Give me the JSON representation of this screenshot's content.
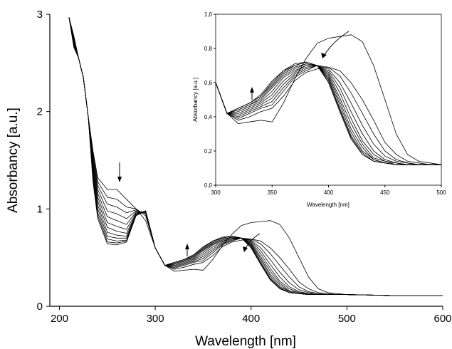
{
  "chart_data": [
    {
      "type": "line",
      "xlabel": "Wavelength [nm]",
      "ylabel": "Absorbancy [a.u.]",
      "xlim": [
        190,
        600
      ],
      "ylim": [
        0,
        3
      ],
      "xticks": [
        "200",
        "300",
        "400",
        "500",
        "600"
      ],
      "yticks": [
        "0",
        "1",
        "2",
        "3"
      ],
      "xtick_values": [
        200,
        300,
        400,
        500,
        600
      ],
      "ytick_values": [
        0,
        1,
        2,
        3
      ],
      "grid": false,
      "series_count": 12,
      "description_of_series": "UV-Vis spectra recorded over time; band near 260 nm decreases, band near 330 nm increases, band near 425 nm shifts to ~385 nm",
      "series": [
        {
          "x": [
            210,
            215,
            220,
            225,
            230,
            235,
            240,
            250,
            260,
            270,
            280,
            290,
            300,
            310,
            320,
            330,
            340,
            350,
            360,
            370,
            380,
            390,
            400,
            410,
            420,
            430,
            440,
            450,
            460,
            470,
            480,
            490,
            500,
            550,
            600
          ],
          "y": [
            2.97,
            2.78,
            2.55,
            2.35,
            1.95,
            1.6,
            1.32,
            1.2,
            1.2,
            1.1,
            1.0,
            0.88,
            0.6,
            0.42,
            0.36,
            0.37,
            0.38,
            0.37,
            0.48,
            0.62,
            0.74,
            0.83,
            0.86,
            0.87,
            0.88,
            0.84,
            0.7,
            0.5,
            0.3,
            0.18,
            0.14,
            0.13,
            0.12,
            0.11,
            0.11
          ]
        },
        {
          "x": [
            210,
            215,
            220,
            225,
            230,
            235,
            240,
            250,
            260,
            270,
            280,
            290,
            300,
            310,
            320,
            330,
            340,
            350,
            360,
            370,
            380,
            390,
            400,
            410,
            420,
            430,
            440,
            450,
            460,
            470,
            480,
            490,
            500,
            550,
            600
          ],
          "y": [
            2.97,
            2.76,
            2.55,
            2.35,
            1.95,
            1.58,
            1.28,
            1.12,
            1.1,
            1.02,
            1.0,
            0.93,
            0.6,
            0.42,
            0.38,
            0.4,
            0.43,
            0.45,
            0.52,
            0.61,
            0.66,
            0.68,
            0.69,
            0.67,
            0.6,
            0.5,
            0.38,
            0.25,
            0.18,
            0.14,
            0.13,
            0.12,
            0.12,
            0.11,
            0.11
          ]
        },
        {
          "x": [
            210,
            215,
            220,
            225,
            230,
            235,
            240,
            250,
            260,
            270,
            280,
            290,
            300,
            310,
            320,
            330,
            340,
            350,
            360,
            370,
            380,
            390,
            400,
            410,
            420,
            430,
            440,
            450,
            460,
            470,
            480,
            490,
            500,
            550,
            600
          ],
          "y": [
            2.97,
            2.75,
            2.55,
            2.35,
            1.95,
            1.55,
            1.24,
            1.05,
            1.02,
            0.96,
            0.99,
            0.95,
            0.6,
            0.42,
            0.39,
            0.42,
            0.45,
            0.47,
            0.55,
            0.63,
            0.67,
            0.7,
            0.69,
            0.64,
            0.54,
            0.42,
            0.3,
            0.2,
            0.15,
            0.13,
            0.12,
            0.12,
            0.12,
            0.11,
            0.11
          ]
        },
        {
          "x": [
            210,
            215,
            220,
            225,
            230,
            235,
            240,
            250,
            260,
            270,
            280,
            290,
            300,
            310,
            320,
            330,
            340,
            350,
            360,
            370,
            380,
            390,
            400,
            410,
            420,
            430,
            440,
            450,
            460,
            470,
            480,
            490,
            500,
            550,
            600
          ],
          "y": [
            2.97,
            2.74,
            2.55,
            2.35,
            1.95,
            1.52,
            1.2,
            0.98,
            0.95,
            0.9,
            0.98,
            0.96,
            0.6,
            0.42,
            0.4,
            0.43,
            0.46,
            0.49,
            0.57,
            0.64,
            0.68,
            0.7,
            0.68,
            0.6,
            0.48,
            0.35,
            0.24,
            0.17,
            0.14,
            0.13,
            0.12,
            0.12,
            0.12,
            0.11,
            0.11
          ]
        },
        {
          "x": [
            210,
            215,
            220,
            225,
            230,
            235,
            240,
            250,
            260,
            270,
            280,
            290,
            300,
            310,
            320,
            330,
            340,
            350,
            360,
            370,
            380,
            390,
            400,
            410,
            420,
            430,
            440,
            450,
            460,
            470,
            480,
            490,
            500,
            550,
            600
          ],
          "y": [
            2.97,
            2.73,
            2.55,
            2.35,
            1.95,
            1.49,
            1.16,
            0.92,
            0.88,
            0.84,
            0.97,
            0.97,
            0.6,
            0.42,
            0.41,
            0.44,
            0.47,
            0.51,
            0.59,
            0.65,
            0.69,
            0.7,
            0.67,
            0.57,
            0.43,
            0.3,
            0.2,
            0.15,
            0.13,
            0.12,
            0.12,
            0.12,
            0.12,
            0.11,
            0.11
          ]
        },
        {
          "x": [
            210,
            215,
            220,
            225,
            230,
            235,
            240,
            250,
            260,
            270,
            280,
            290,
            300,
            310,
            320,
            330,
            340,
            350,
            360,
            370,
            380,
            390,
            400,
            410,
            420,
            430,
            440,
            450,
            460,
            470,
            480,
            490,
            500,
            550,
            600
          ],
          "y": [
            2.97,
            2.72,
            2.55,
            2.35,
            1.95,
            1.46,
            1.12,
            0.86,
            0.82,
            0.79,
            0.96,
            0.97,
            0.6,
            0.42,
            0.42,
            0.45,
            0.48,
            0.53,
            0.61,
            0.66,
            0.7,
            0.7,
            0.66,
            0.54,
            0.39,
            0.26,
            0.18,
            0.14,
            0.13,
            0.12,
            0.12,
            0.12,
            0.12,
            0.11,
            0.11
          ]
        },
        {
          "x": [
            210,
            215,
            220,
            225,
            230,
            235,
            240,
            250,
            260,
            270,
            280,
            290,
            300,
            310,
            320,
            330,
            340,
            350,
            360,
            370,
            380,
            390,
            400,
            410,
            420,
            430,
            440,
            450,
            460,
            470,
            480,
            490,
            500,
            550,
            600
          ],
          "y": [
            2.97,
            2.71,
            2.55,
            2.35,
            1.95,
            1.43,
            1.08,
            0.81,
            0.77,
            0.75,
            0.95,
            0.98,
            0.6,
            0.42,
            0.43,
            0.46,
            0.49,
            0.55,
            0.63,
            0.67,
            0.7,
            0.7,
            0.65,
            0.51,
            0.36,
            0.24,
            0.16,
            0.14,
            0.12,
            0.12,
            0.12,
            0.12,
            0.12,
            0.11,
            0.11
          ]
        },
        {
          "x": [
            210,
            215,
            220,
            225,
            230,
            235,
            240,
            250,
            260,
            270,
            280,
            290,
            300,
            310,
            320,
            330,
            340,
            350,
            360,
            370,
            380,
            390,
            400,
            410,
            420,
            430,
            440,
            450,
            460,
            470,
            480,
            490,
            500,
            550,
            600
          ],
          "y": [
            2.97,
            2.7,
            2.55,
            2.35,
            1.95,
            1.4,
            1.04,
            0.76,
            0.73,
            0.72,
            0.95,
            0.98,
            0.6,
            0.42,
            0.44,
            0.47,
            0.5,
            0.57,
            0.64,
            0.68,
            0.71,
            0.7,
            0.64,
            0.49,
            0.33,
            0.22,
            0.15,
            0.13,
            0.12,
            0.12,
            0.12,
            0.12,
            0.12,
            0.11,
            0.11
          ]
        },
        {
          "x": [
            210,
            215,
            220,
            225,
            230,
            235,
            240,
            250,
            260,
            270,
            280,
            290,
            300,
            310,
            320,
            330,
            340,
            350,
            360,
            370,
            380,
            390,
            400,
            410,
            420,
            430,
            440,
            450,
            460,
            470,
            480,
            490,
            500,
            550,
            600
          ],
          "y": [
            2.97,
            2.69,
            2.55,
            2.35,
            1.95,
            1.37,
            1.0,
            0.72,
            0.7,
            0.7,
            0.94,
            0.98,
            0.6,
            0.42,
            0.44,
            0.47,
            0.51,
            0.58,
            0.65,
            0.69,
            0.71,
            0.7,
            0.63,
            0.47,
            0.31,
            0.2,
            0.15,
            0.13,
            0.12,
            0.12,
            0.12,
            0.12,
            0.12,
            0.11,
            0.11
          ]
        },
        {
          "x": [
            210,
            215,
            220,
            225,
            230,
            235,
            240,
            250,
            260,
            270,
            280,
            290,
            300,
            310,
            320,
            330,
            340,
            350,
            360,
            370,
            380,
            390,
            400,
            410,
            420,
            430,
            440,
            450,
            460,
            470,
            480,
            490,
            500,
            550,
            600
          ],
          "y": [
            2.97,
            2.68,
            2.55,
            2.35,
            1.95,
            1.34,
            0.96,
            0.69,
            0.67,
            0.68,
            0.94,
            0.98,
            0.6,
            0.42,
            0.45,
            0.48,
            0.52,
            0.59,
            0.66,
            0.7,
            0.72,
            0.7,
            0.62,
            0.45,
            0.29,
            0.19,
            0.14,
            0.13,
            0.12,
            0.12,
            0.12,
            0.12,
            0.12,
            0.11,
            0.11
          ]
        },
        {
          "x": [
            210,
            215,
            220,
            225,
            230,
            235,
            240,
            250,
            260,
            270,
            280,
            290,
            300,
            310,
            320,
            330,
            340,
            350,
            360,
            370,
            380,
            390,
            400,
            410,
            420,
            430,
            440,
            450,
            460,
            470,
            480,
            490,
            500,
            550,
            600
          ],
          "y": [
            2.97,
            2.67,
            2.55,
            2.35,
            1.95,
            1.31,
            0.93,
            0.66,
            0.65,
            0.67,
            0.94,
            0.98,
            0.6,
            0.42,
            0.45,
            0.48,
            0.52,
            0.6,
            0.67,
            0.7,
            0.72,
            0.7,
            0.61,
            0.44,
            0.28,
            0.18,
            0.14,
            0.13,
            0.12,
            0.12,
            0.12,
            0.12,
            0.12,
            0.11,
            0.11
          ]
        },
        {
          "x": [
            210,
            215,
            220,
            225,
            230,
            235,
            240,
            250,
            260,
            270,
            280,
            290,
            300,
            310,
            320,
            330,
            340,
            350,
            360,
            370,
            380,
            390,
            400,
            410,
            420,
            430,
            440,
            450,
            460,
            470,
            480,
            490,
            500,
            550,
            600
          ],
          "y": [
            2.97,
            2.66,
            2.55,
            2.35,
            1.95,
            1.28,
            0.9,
            0.64,
            0.63,
            0.66,
            0.93,
            0.98,
            0.6,
            0.42,
            0.45,
            0.48,
            0.53,
            0.61,
            0.67,
            0.71,
            0.72,
            0.7,
            0.6,
            0.43,
            0.27,
            0.18,
            0.14,
            0.13,
            0.12,
            0.12,
            0.12,
            0.12,
            0.12,
            0.11,
            0.11
          ]
        }
      ]
    },
    {
      "type": "line",
      "xlabel": "Wavelength [nm]",
      "ylabel": "Absorbancy [a.u.]",
      "xlim": [
        300,
        500
      ],
      "ylim": [
        0.0,
        1.0
      ],
      "xticks": [
        "300",
        "350",
        "400",
        "450",
        "500"
      ],
      "yticks": [
        "0,0",
        "0,2",
        "0,4",
        "0,6",
        "0,8",
        "1,0"
      ],
      "xtick_values": [
        300,
        350,
        400,
        450,
        500
      ],
      "ytick_values": [
        0.0,
        0.2,
        0.4,
        0.6,
        0.8,
        1.0
      ],
      "grid": false,
      "series_from": "zoom of main chart, 300–500 nm"
    }
  ]
}
